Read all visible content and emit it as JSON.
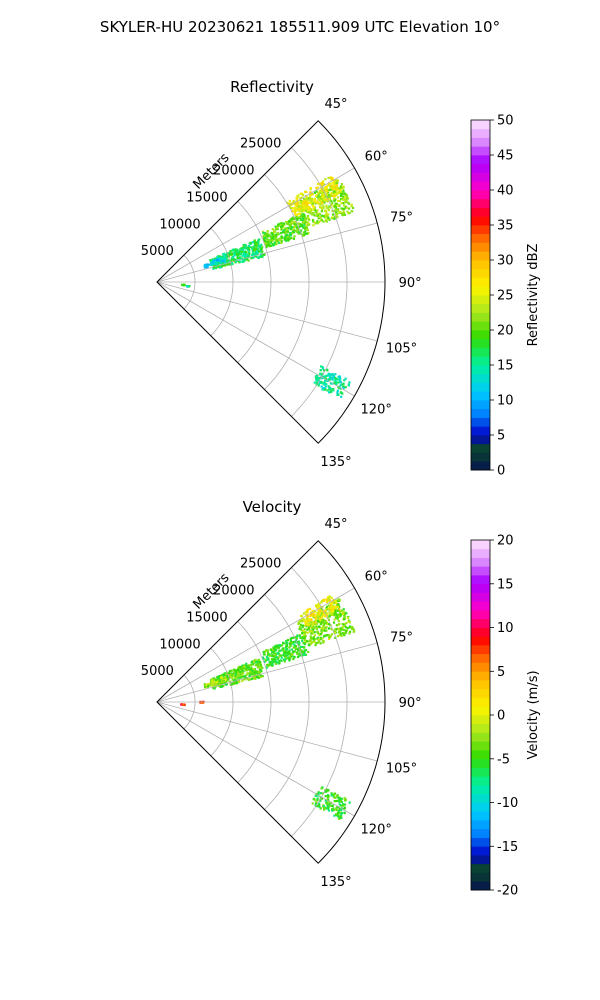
{
  "figure": {
    "title": "SKYLER-HU  20230621  185511.909 UTC Elevation 10°"
  },
  "chart_data": [
    {
      "type": "heatmap",
      "title": "Reflectivity",
      "projection": "polar-sector",
      "theta_range_deg": [
        45,
        135
      ],
      "theta_ticks_deg": [
        "45°",
        "60°",
        "75°",
        "90°",
        "105°",
        "120°",
        "135°"
      ],
      "r_label": "Meters",
      "r_ticks": [
        "5000",
        "10000",
        "15000",
        "20000",
        "25000"
      ],
      "r_max": 30000,
      "grid": true,
      "colorbar": {
        "label": "Reflectivity dBZ",
        "range": [
          0,
          50
        ],
        "ticks": [
          "0",
          "5",
          "10",
          "15",
          "20",
          "25",
          "30",
          "35",
          "40",
          "45",
          "50"
        ],
        "placement": "right"
      },
      "echo_regions": [
        {
          "theta": [
            60,
            70
          ],
          "r": [
            21000,
            27500
          ],
          "value": 22
        },
        {
          "theta": [
            64,
            72
          ],
          "r": [
            15000,
            21000
          ],
          "value": 20
        },
        {
          "theta": [
            66,
            76
          ],
          "r": [
            7500,
            14500
          ],
          "value": 17
        },
        {
          "theta": [
            68,
            72
          ],
          "r": [
            6500,
            9500
          ],
          "value": 12
        },
        {
          "theta": [
            58,
            64
          ],
          "r": [
            20000,
            27000
          ],
          "value": 26
        },
        {
          "theta": [
            93,
            95
          ],
          "r": [
            3000,
            3600
          ],
          "value": 20
        },
        {
          "theta": [
            117,
            123
          ],
          "r": [
            24000,
            28500
          ],
          "value": 15
        },
        {
          "theta": [
            95,
            97
          ],
          "r": [
            3800,
            4300
          ],
          "value": 15
        }
      ]
    },
    {
      "type": "heatmap",
      "title": "Velocity",
      "projection": "polar-sector",
      "theta_range_deg": [
        45,
        135
      ],
      "theta_ticks_deg": [
        "45°",
        "60°",
        "75°",
        "90°",
        "105°",
        "120°",
        "135°"
      ],
      "r_label": "Meters",
      "r_ticks": [
        "5000",
        "10000",
        "15000",
        "20000",
        "25000"
      ],
      "r_max": 30000,
      "grid": true,
      "colorbar": {
        "label": "Velocity (m/s)",
        "range": [
          -20,
          20
        ],
        "ticks": [
          "-20",
          "-15",
          "-10",
          "-5",
          "0",
          "5",
          "10",
          "15",
          "20"
        ],
        "placement": "right"
      },
      "echo_regions": [
        {
          "theta": [
            60,
            70
          ],
          "r": [
            21000,
            27500
          ],
          "value": -3
        },
        {
          "theta": [
            58,
            63
          ],
          "r": [
            22000,
            27000
          ],
          "value": 1
        },
        {
          "theta": [
            64,
            72
          ],
          "r": [
            15000,
            21000
          ],
          "value": -5
        },
        {
          "theta": [
            66,
            76
          ],
          "r": [
            7500,
            14500
          ],
          "value": -4
        },
        {
          "theta": [
            68,
            72
          ],
          "r": [
            6500,
            9500
          ],
          "value": -2
        },
        {
          "theta": [
            93,
            95
          ],
          "r": [
            3000,
            3600
          ],
          "value": 8
        },
        {
          "theta": [
            117,
            123
          ],
          "r": [
            24000,
            28500
          ],
          "value": -5
        },
        {
          "theta": [
            88,
            90
          ],
          "r": [
            5500,
            6000
          ],
          "value": 8
        }
      ]
    }
  ]
}
